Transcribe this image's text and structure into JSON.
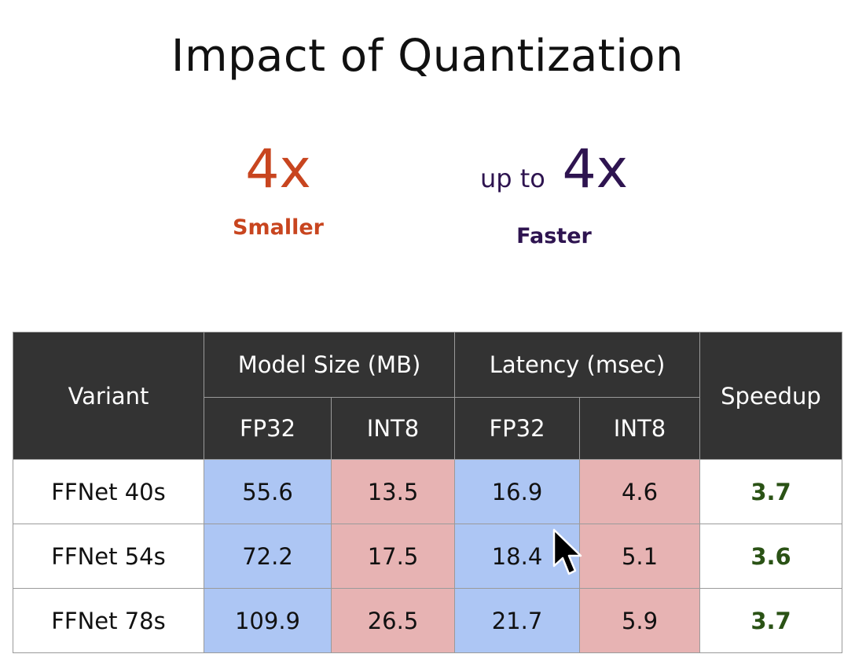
{
  "title": "Impact of Quantization",
  "stats": {
    "smaller": {
      "value": "4x",
      "label": "Smaller"
    },
    "faster": {
      "prefix": "up to",
      "value": "4x",
      "label": "Faster"
    }
  },
  "colors": {
    "smaller_accent": "#c8451f",
    "faster_accent": "#2e1450",
    "header_bg": "#333333",
    "fp32_bg": "#adc6f4",
    "int8_bg": "#e7b3b3",
    "speedup_text": "#2a5215"
  },
  "table": {
    "headers": {
      "variant": "Variant",
      "model_size": "Model Size (MB)",
      "latency": "Latency (msec)",
      "speedup": "Speedup",
      "model_fp32": "FP32",
      "model_int8": "INT8",
      "latency_fp32": "FP32",
      "latency_int8": "INT8"
    },
    "rows": [
      {
        "variant": "FFNet 40s",
        "size_fp32": "55.6",
        "size_int8": "13.5",
        "lat_fp32": "16.9",
        "lat_int8": "4.6",
        "speedup": "3.7"
      },
      {
        "variant": "FFNet 54s",
        "size_fp32": "72.2",
        "size_int8": "17.5",
        "lat_fp32": "18.4",
        "lat_int8": "5.1",
        "speedup": "3.6"
      },
      {
        "variant": "FFNet 78s",
        "size_fp32": "109.9",
        "size_int8": "26.5",
        "lat_fp32": "21.7",
        "lat_int8": "5.9",
        "speedup": "3.7"
      }
    ]
  },
  "cursor_icon": "arrow-cursor"
}
